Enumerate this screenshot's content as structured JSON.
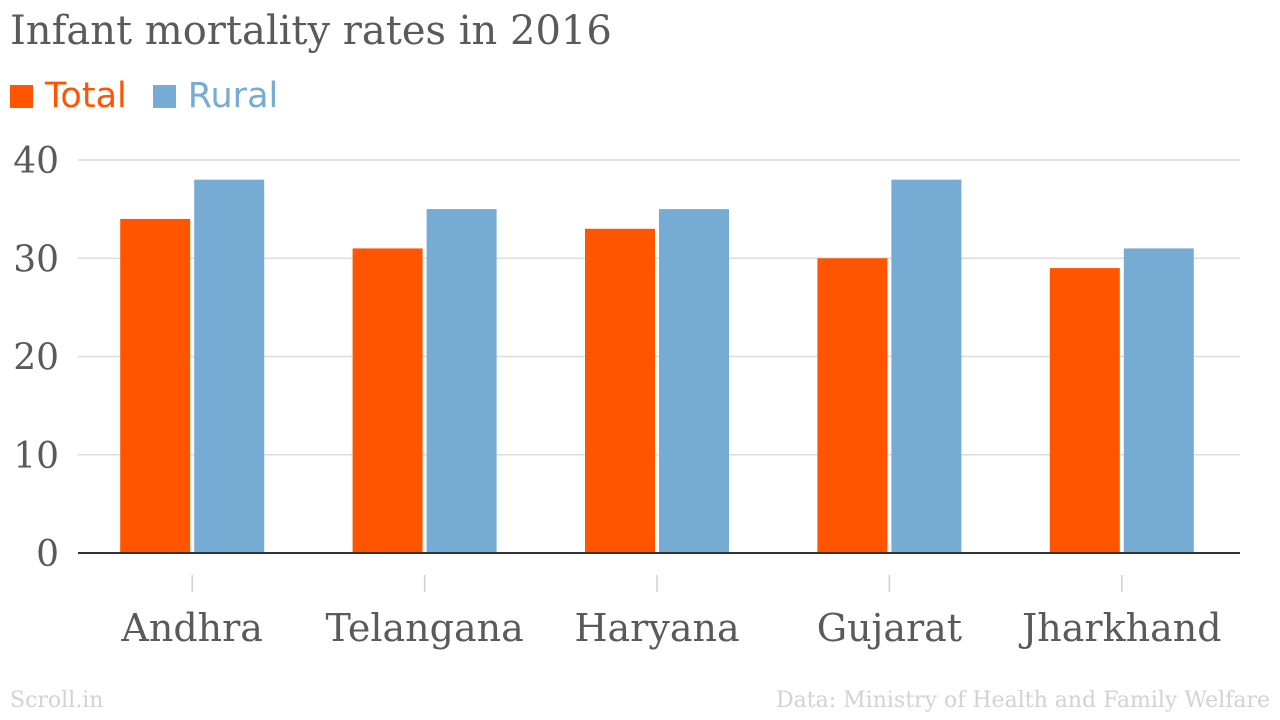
{
  "chart_data": {
    "type": "bar",
    "title": "Infant mortality rates in 2016",
    "categories": [
      "Andhra",
      "Telangana",
      "Haryana",
      "Gujarat",
      "Jharkhand"
    ],
    "series": [
      {
        "name": "Total",
        "color": "#ff5500",
        "values": [
          34,
          31,
          33,
          30,
          29
        ]
      },
      {
        "name": "Rural",
        "color": "#76abd3",
        "values": [
          38,
          35,
          35,
          38,
          31
        ]
      }
    ],
    "xlabel": "",
    "ylabel": "",
    "ylim": [
      0,
      40
    ],
    "yticks": [
      "0",
      "10",
      "20",
      "30",
      "40"
    ],
    "grid": true,
    "legend_position": "top-left"
  },
  "footer": {
    "source_brand": "Scroll.in",
    "data_credit": "Data: Ministry of Health and Family Welfare"
  }
}
